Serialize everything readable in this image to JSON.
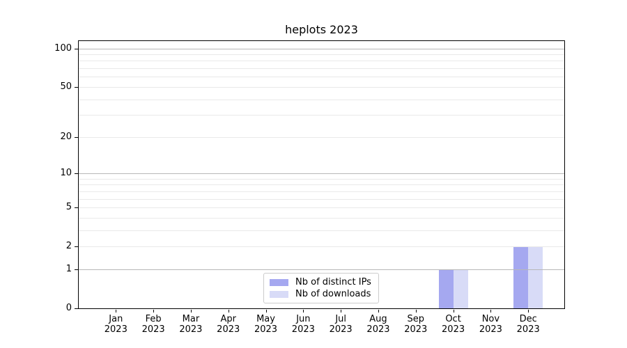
{
  "chart_data": {
    "type": "bar",
    "title": "heplots 2023",
    "categories": [
      "Jan 2023",
      "Feb 2023",
      "Mar 2023",
      "Apr 2023",
      "May 2023",
      "Jun 2023",
      "Jul 2023",
      "Aug 2023",
      "Sep 2023",
      "Oct 2023",
      "Nov 2023",
      "Dec 2023"
    ],
    "x_months": [
      "Jan",
      "Feb",
      "Mar",
      "Apr",
      "May",
      "Jun",
      "Jul",
      "Aug",
      "Sep",
      "Oct",
      "Nov",
      "Dec"
    ],
    "x_year": "2023",
    "series": [
      {
        "name": "Nb of distinct IPs",
        "color": "#a5a8f0",
        "values": [
          0,
          0,
          0,
          0,
          0,
          0,
          0,
          0,
          0,
          1,
          0,
          2
        ]
      },
      {
        "name": "Nb of downloads",
        "color": "#d8dbf7",
        "values": [
          0,
          0,
          0,
          0,
          0,
          0,
          0,
          0,
          0,
          1,
          0,
          2
        ]
      }
    ],
    "yaxis": {
      "scale": "log10(1+x)",
      "tick_values": [
        0,
        1,
        2,
        5,
        10,
        20,
        50,
        100
      ],
      "range_top": 116
    },
    "grid": {
      "on": true,
      "major_at": [
        1,
        10,
        100
      ],
      "minor_at": [
        2,
        3,
        4,
        5,
        6,
        7,
        8,
        9,
        20,
        30,
        40,
        50,
        60,
        70,
        80,
        90
      ],
      "major_color": "#b7b7b7",
      "minor_color": "#e9e9e9"
    },
    "legend": {
      "position": "lower center",
      "border_color": "#cccccc",
      "background": "#ffffff"
    }
  },
  "styles": {
    "background": "#ffffff",
    "spine_color": "#000000",
    "text_color": "#000000"
  }
}
